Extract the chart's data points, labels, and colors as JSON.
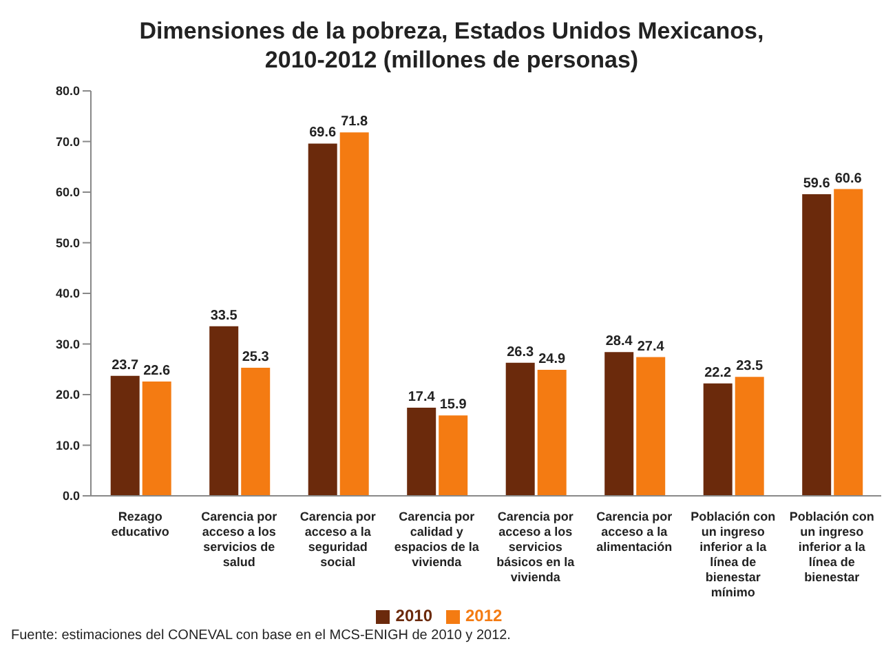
{
  "chart_data": {
    "type": "bar",
    "title": "Dimensiones de la pobreza, Estados Unidos Mexicanos, 2010-2012 (millones de personas)",
    "categories": [
      "Rezago educativo",
      "Carencia por acceso a los servicios de salud",
      "Carencia por acceso a la seguridad social",
      "Carencia por calidad y espacios de la vivienda",
      "Carencia por acceso a los servicios básicos en la vivienda",
      "Carencia por acceso a la alimentación",
      "Población con un ingreso inferior a la línea de bienestar mínimo",
      "Población con un ingreso inferior a la línea de bienestar"
    ],
    "series": [
      {
        "name": "2010",
        "color": "#6b2a0c",
        "values": [
          23.7,
          33.5,
          69.6,
          17.4,
          26.3,
          28.4,
          22.2,
          59.6
        ]
      },
      {
        "name": "2012",
        "color": "#f47b12",
        "values": [
          22.6,
          25.3,
          71.8,
          15.9,
          24.9,
          27.4,
          23.5,
          60.6
        ]
      }
    ],
    "ylim": [
      0,
      80
    ],
    "yticks": [
      {
        "value": 0,
        "label": "0.0"
      },
      {
        "value": 10,
        "label": "10.0"
      },
      {
        "value": 20,
        "label": "20.0"
      },
      {
        "value": 30,
        "label": "30.0"
      },
      {
        "value": 40,
        "label": "40.0"
      },
      {
        "value": 50,
        "label": "50.0"
      },
      {
        "value": 60,
        "label": "60.0"
      },
      {
        "value": 70,
        "label": "70.0"
      },
      {
        "value": 80,
        "label": "80.0"
      }
    ],
    "grid": false,
    "legend": "bottom",
    "data_labels": true,
    "annotations": [
      "Fuente: estimaciones del CONEVAL con base en el MCS-ENIGH de 2010 y 2012."
    ]
  }
}
